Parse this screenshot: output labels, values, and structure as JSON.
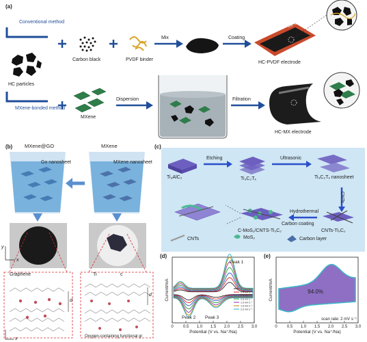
{
  "panel_a": {
    "letter": "(a)",
    "conventional_method": "Conventional method",
    "mxene_bonded_method": "MXene-bonded method",
    "hc_particles": "HC particles",
    "carbon_black": "Carbon black",
    "pvdf_binder": "PVDF binder",
    "mix": "Mix",
    "coating": "Coating",
    "cu_foil": "Cu foil",
    "hc_pvdf_electrode": "HC-PVDF electrode",
    "mxene": "MXene",
    "dispersion": "Dispersion",
    "filtration": "Filtration",
    "hc_mx_electrode": "HC-MX electrode"
  },
  "panel_b": {
    "letter": "(b)",
    "mxene_go_title": "MXene@GO",
    "mxene_title": "MXene",
    "go_nanosheet": "Go nanosheet",
    "mxene_nanosheet": "MXene nanosheet",
    "graphene": "Graphene",
    "ti": "Ti",
    "c": "c",
    "d_left": "d",
    "d_right": "d",
    "axis_y": "y",
    "axis_x": "x",
    "axis_x2": "x",
    "oxygen_group": "Oxygen-containing functional gr"
  },
  "panel_c": {
    "letter": "(c)",
    "ti3alc2": "Ti₃AlC₂",
    "etching": "Etching",
    "ti3c2tx": "Ti₃C₂Tₓ",
    "ultrasonic": "Ultrasonic",
    "ti3c2tx_nanosheet": "Ti₃C₂Tₓ nanosheet",
    "cnts_arrow": "CNTs",
    "hydrothermal": "Hydrothermal",
    "carbon_coating": "Carbon coating",
    "c_mos2": "C-MoS₂/CNTS-Ti₃C₂",
    "cnts_ti3c2": "CNTs-Ti₃C₂",
    "legend_cnts": "CNTs",
    "legend_mos2": "MoS₂",
    "legend_carbon": "Carbon layer"
  },
  "chart_data": [
    {
      "type": "line",
      "panel": "(d)",
      "xlabel": "Potential (V vs. Na⁺/Na)",
      "ylabel": "Current/mA",
      "xlim": [
        0,
        3.0
      ],
      "xticks": [
        "0",
        "0.5",
        "1.0",
        "1.5",
        "2.0",
        "2.5",
        "3.0"
      ],
      "annotations": [
        "Peak 1",
        "Peak 2",
        "Peak 3"
      ],
      "series": [
        {
          "name": "0.2 mV s⁻¹",
          "color": "#222222",
          "amp": 0.28
        },
        {
          "name": "0.4 mV s⁻¹",
          "color": "#d9272e",
          "amp": 0.4
        },
        {
          "name": "0.6 mV s⁻¹",
          "color": "#2b4fc9",
          "amp": 0.52
        },
        {
          "name": "0.8 mV s⁻¹",
          "color": "#1e9e3a",
          "amp": 0.66
        },
        {
          "name": "1.0 mV s⁻¹",
          "color": "#8b2fa8",
          "amp": 0.8
        },
        {
          "name": "1.5 mV s⁻¹",
          "color": "#b8860b",
          "amp": 0.92
        },
        {
          "name": "2.0 mV s⁻¹",
          "color": "#20b2c8",
          "amp": 1.0
        }
      ]
    },
    {
      "type": "area",
      "panel": "(e)",
      "xlabel": "Potential (V vs. Na⁺/Na)",
      "ylabel": "Current/mA",
      "xlim": [
        0,
        3.0
      ],
      "xticks": [
        "0",
        "0.5",
        "1.0",
        "1.5",
        "2.0",
        "2.5",
        "3.0"
      ],
      "fill_label": "94.0%",
      "note": "scan rate: 2 mV s⁻¹",
      "fill_color": "#8e6fc4",
      "outline_color": "#3fb6c8"
    }
  ]
}
